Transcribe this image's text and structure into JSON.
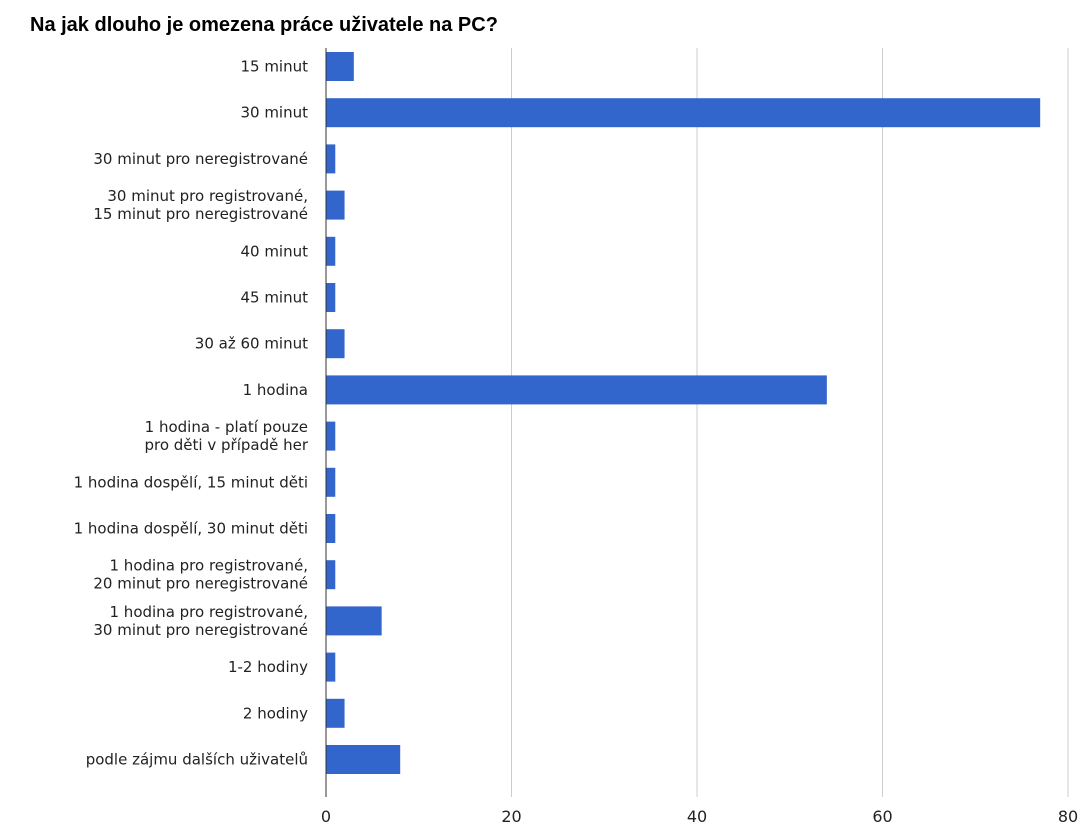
{
  "chart_data": {
    "type": "bar",
    "orientation": "horizontal",
    "title": "Na jak dlouho je omezena práce uživatele na PC?",
    "xlabel": "",
    "ylabel": "",
    "categories": [
      "15 minut",
      "30 minut",
      "30 minut pro neregistrované",
      "30 minut pro registrované,\n15 minut pro neregistrované",
      "40 minut",
      "45 minut",
      "30 až 60 minut",
      "1 hodina",
      "1 hodina - platí pouze\npro děti v případě her",
      "1 hodina dospělí, 15 minut děti",
      "1 hodina dospělí, 30 minut děti",
      "1 hodina pro registrované,\n20 minut pro neregistrované",
      "1 hodina pro registrované,\n30 minut pro neregistrované",
      "1-2 hodiny",
      "2 hodiny",
      "podle zájmu dalších uživatelů"
    ],
    "values": [
      3,
      77,
      1,
      2,
      1,
      1,
      2,
      54,
      1,
      1,
      1,
      1,
      6,
      1,
      2,
      8
    ],
    "xlim": [
      0,
      80
    ],
    "xticks": [
      0,
      20,
      40,
      60,
      80
    ],
    "grid": true,
    "legend": "none",
    "bar_color": "#3366cc",
    "grid_color": "#cccccc"
  }
}
